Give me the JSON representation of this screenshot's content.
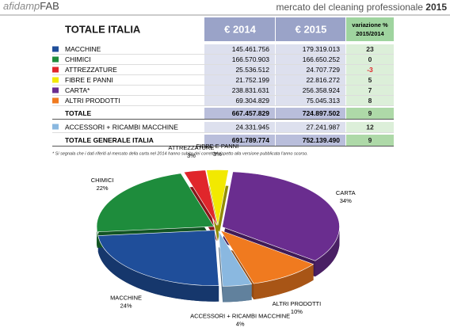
{
  "header": {
    "logo_a": "afidamp",
    "logo_b": "FAB",
    "subtitle": "mercato del cleaning professionale",
    "year": "2015"
  },
  "table": {
    "header": {
      "title": "TOTALE ITALIA",
      "col_2014": "€ 2014",
      "col_2015": "€ 2015",
      "change_a": "variazione %",
      "change_b": "2015/2014"
    },
    "rows": [
      {
        "name": "MACCHINE",
        "color": "#1f4e9a",
        "v2014": "145.461.756",
        "v2015": "179.319.013",
        "change": "23"
      },
      {
        "name": "CHIMICI",
        "color": "#1e8c3c",
        "v2014": "166.570.903",
        "v2015": "166.650.252",
        "change": "0"
      },
      {
        "name": "ATTREZZATURE",
        "color": "#e0262b",
        "v2014": "25.536.512",
        "v2015": "24.707.729",
        "change": "-3"
      },
      {
        "name": "FIBRE E PANNI",
        "color": "#f2e900",
        "v2014": "21.752.199",
        "v2015": "22.816.272",
        "change": "5"
      },
      {
        "name": "CARTA*",
        "color": "#6a2d8f",
        "v2014": "238.831.631",
        "v2015": "256.358.924",
        "change": "7"
      },
      {
        "name": "ALTRI PRODOTTI",
        "color": "#f07a1f",
        "v2014": "69.304.829",
        "v2015": "75.045.313",
        "change": "8"
      }
    ],
    "total": {
      "name": "TOTALE",
      "v2014": "667.457.829",
      "v2015": "724.897.502",
      "change": "9"
    },
    "accessories": {
      "name": "ACCESSORI + RICAMBI MACCHINE",
      "color": "#8ab8e0",
      "v2014": "24.331.945",
      "v2015": "27.241.987",
      "change": "12"
    },
    "grand_total": {
      "name": "TOTALE GENERALE ITALIA",
      "v2014": "691.789.774",
      "v2015": "752.139.490",
      "change": "9"
    }
  },
  "note": "* Si segnala che i dati riferiti al mercato della carta nel 2014 hanno subito dei correttivi rispetto alla versione pubblicata l'anno scorso.",
  "chart_data": {
    "type": "pie",
    "categories": [
      "MACCHINE",
      "CHIMICI",
      "ATTREZZATURE",
      "FIBRE E PANNI",
      "CARTA",
      "ALTRI PRODOTTI",
      "ACCESSORI + RICAMBI MACCHINE"
    ],
    "values": [
      24,
      22,
      3,
      3,
      34,
      10,
      4
    ],
    "value_labels": [
      "24%",
      "22%",
      "3%",
      "3%",
      "34%",
      "10%",
      "4%"
    ],
    "colors": [
      "#1f4e9a",
      "#1e8c3c",
      "#e0262b",
      "#f2e900",
      "#6a2d8f",
      "#f07a1f",
      "#8ab8e0"
    ]
  }
}
